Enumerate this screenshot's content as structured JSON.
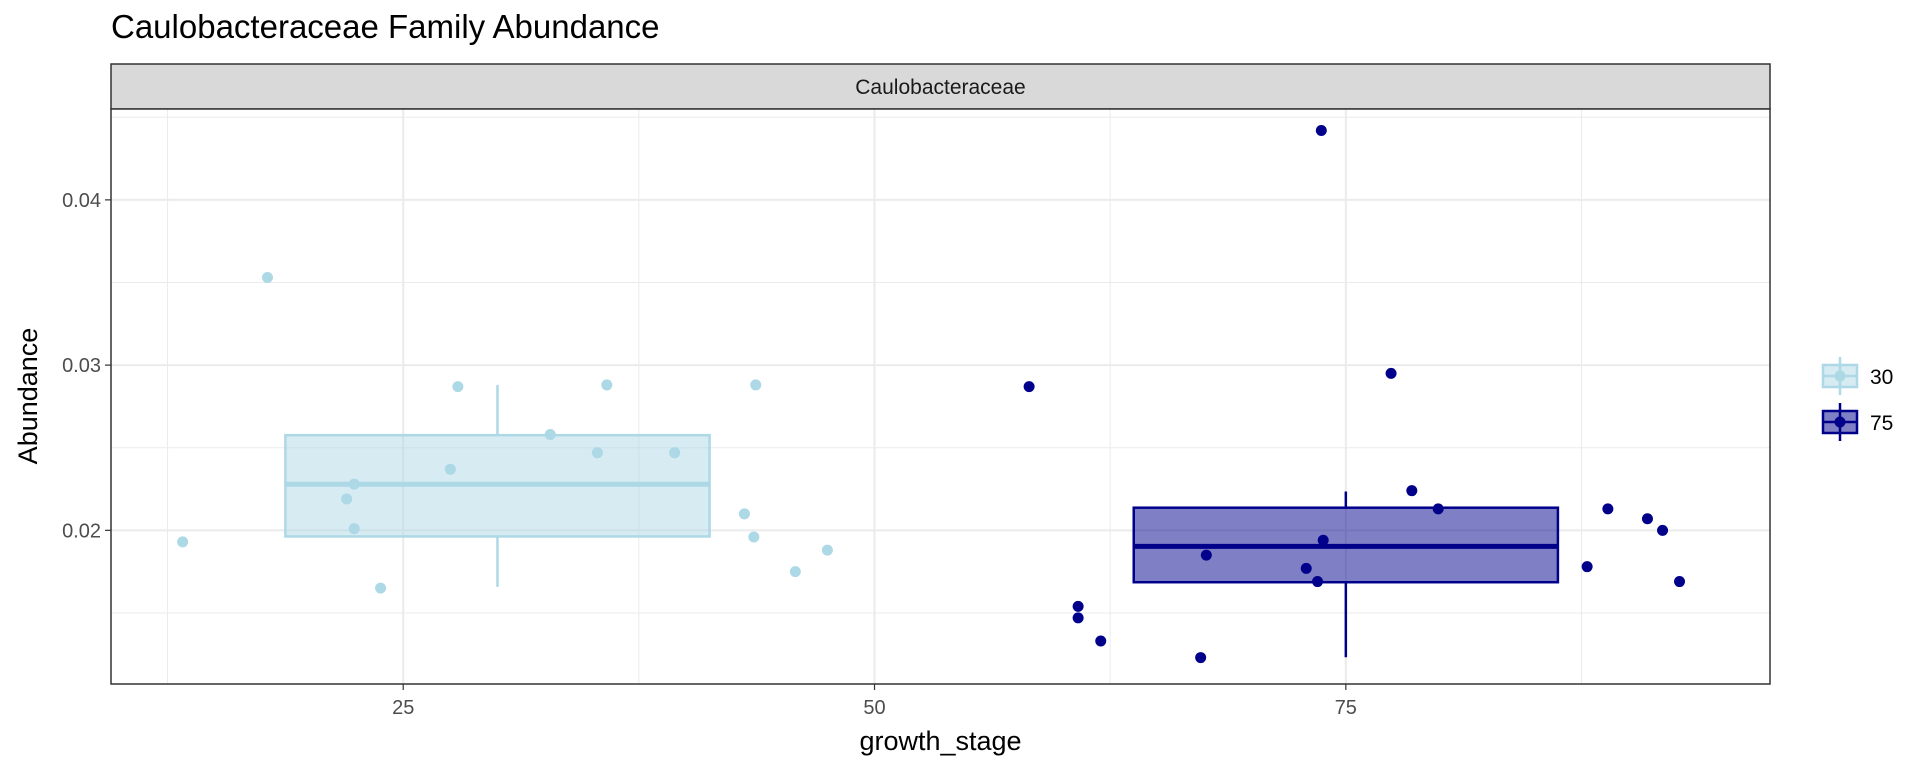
{
  "chart_data": {
    "type": "boxplot",
    "title": "Caulobacteraceae Family Abundance",
    "facet": "Caulobacteraceae",
    "xlabel": "growth_stage",
    "ylabel": "Abundance",
    "xlim": [
      9.5,
      97.5
    ],
    "ylim": [
      0.0107,
      0.0455
    ],
    "x_ticks": [
      25,
      50,
      75
    ],
    "y_ticks": [
      0.02,
      0.03,
      0.04
    ],
    "y_tick_labels": [
      "0.02",
      "0.03",
      "0.04"
    ],
    "grid": true,
    "legend_position": "right",
    "series": [
      {
        "name": "30",
        "color": "#add8e6",
        "x_center": 30,
        "box": {
          "x_from": 18.75,
          "x_to": 41.25,
          "q1": 0.01963,
          "median": 0.02279,
          "q3": 0.02576,
          "whisker_low": 0.01658,
          "whisker_high": 0.0288
        },
        "points": [
          {
            "x": 13.3,
            "y": 0.0193
          },
          {
            "x": 17.8,
            "y": 0.0353
          },
          {
            "x": 22.0,
            "y": 0.0219
          },
          {
            "x": 22.4,
            "y": 0.0228
          },
          {
            "x": 22.4,
            "y": 0.0201
          },
          {
            "x": 23.8,
            "y": 0.0165
          },
          {
            "x": 27.5,
            "y": 0.0237
          },
          {
            "x": 27.9,
            "y": 0.0287
          },
          {
            "x": 32.8,
            "y": 0.0258
          },
          {
            "x": 35.3,
            "y": 0.0247
          },
          {
            "x": 35.8,
            "y": 0.0288
          },
          {
            "x": 39.4,
            "y": 0.0247
          },
          {
            "x": 43.1,
            "y": 0.021
          },
          {
            "x": 43.6,
            "y": 0.0196
          },
          {
            "x": 43.7,
            "y": 0.0288
          },
          {
            "x": 45.8,
            "y": 0.0175
          },
          {
            "x": 47.5,
            "y": 0.0188
          }
        ]
      },
      {
        "name": "75",
        "color": "#00008b",
        "x_center": 75,
        "box": {
          "x_from": 63.75,
          "x_to": 86.25,
          "q1": 0.01686,
          "median": 0.01903,
          "q3": 0.02137,
          "whisker_low": 0.01232,
          "whisker_high": 0.02235
        },
        "points": [
          {
            "x": 58.2,
            "y": 0.0287
          },
          {
            "x": 60.8,
            "y": 0.0154
          },
          {
            "x": 60.8,
            "y": 0.0147
          },
          {
            "x": 62.0,
            "y": 0.0133
          },
          {
            "x": 67.3,
            "y": 0.0123
          },
          {
            "x": 67.6,
            "y": 0.0185
          },
          {
            "x": 72.9,
            "y": 0.0177
          },
          {
            "x": 73.5,
            "y": 0.0169
          },
          {
            "x": 73.7,
            "y": 0.0442
          },
          {
            "x": 73.8,
            "y": 0.0194
          },
          {
            "x": 77.4,
            "y": 0.0295
          },
          {
            "x": 78.5,
            "y": 0.0224
          },
          {
            "x": 79.9,
            "y": 0.0213
          },
          {
            "x": 87.8,
            "y": 0.0178
          },
          {
            "x": 88.9,
            "y": 0.0213
          },
          {
            "x": 91.0,
            "y": 0.0207
          },
          {
            "x": 91.8,
            "y": 0.02
          },
          {
            "x": 92.7,
            "y": 0.0169
          }
        ]
      }
    ]
  }
}
